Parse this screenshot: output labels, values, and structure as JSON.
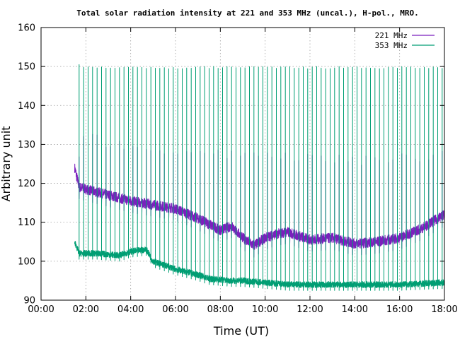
{
  "chart_data": {
    "type": "line",
    "title": "Total solar radiation intensity at 221 and 353 MHz (uncal.), H-pol., MRO.",
    "xlabel": "Time (UT)",
    "ylabel": "Arbitrary unit",
    "xlim": [
      0,
      18
    ],
    "ylim": [
      90,
      160
    ],
    "x_ticks": [
      "00:00",
      "02:00",
      "04:00",
      "06:00",
      "08:00",
      "10:00",
      "12:00",
      "14:00",
      "16:00",
      "18:00"
    ],
    "y_ticks": [
      "90",
      "100",
      "110",
      "120",
      "130",
      "140",
      "150",
      "160"
    ],
    "grid": true,
    "legend": "top-right",
    "series": [
      {
        "name": "221 MHz",
        "color": "#7b1fbd",
        "baseline": [
          [
            1.5,
            124
          ],
          [
            1.7,
            119
          ],
          [
            2.0,
            118.5
          ],
          [
            3.0,
            117
          ],
          [
            4.0,
            115.5
          ],
          [
            5.0,
            114.5
          ],
          [
            6.0,
            113.5
          ],
          [
            7.0,
            111
          ],
          [
            8.0,
            108
          ],
          [
            8.5,
            109
          ],
          [
            9.0,
            106
          ],
          [
            9.5,
            104
          ],
          [
            10.0,
            106
          ],
          [
            10.5,
            107
          ],
          [
            11.0,
            107.5
          ],
          [
            11.5,
            106.5
          ],
          [
            12.0,
            105.5
          ],
          [
            13.0,
            106
          ],
          [
            14.0,
            104.5
          ],
          [
            15.0,
            105
          ],
          [
            16.0,
            106
          ],
          [
            17.0,
            108.5
          ],
          [
            18.0,
            112
          ]
        ],
        "spikes": [
          [
            1.7,
            129
          ],
          [
            2.0,
            134
          ],
          [
            3.0,
            131
          ],
          [
            4.0,
            131
          ],
          [
            5.0,
            130
          ],
          [
            6.0,
            130
          ],
          [
            8.0,
            129
          ],
          [
            10.0,
            128
          ],
          [
            12.0,
            128
          ],
          [
            14.0,
            127
          ],
          [
            16.0,
            128
          ],
          [
            17.5,
            128
          ],
          [
            18.0,
            130
          ]
        ]
      },
      {
        "name": "353 MHz",
        "color": "#009e73",
        "baseline": [
          [
            1.5,
            105
          ],
          [
            1.7,
            102
          ],
          [
            2.5,
            102
          ],
          [
            3.5,
            101.5
          ],
          [
            4.0,
            102.5
          ],
          [
            4.7,
            103
          ],
          [
            5.0,
            100
          ],
          [
            6.0,
            98
          ],
          [
            7.0,
            96.5
          ],
          [
            7.5,
            95.5
          ],
          [
            8.5,
            95
          ],
          [
            9.0,
            95
          ],
          [
            10.0,
            94.5
          ],
          [
            11.0,
            94
          ],
          [
            12.0,
            94
          ],
          [
            14.0,
            94
          ],
          [
            16.0,
            94
          ],
          [
            18.0,
            94.5
          ]
        ],
        "spikes": [
          [
            1.7,
            151
          ],
          [
            2.0,
            150
          ],
          [
            4.0,
            150
          ],
          [
            6.0,
            150
          ],
          [
            8.0,
            150
          ],
          [
            10.0,
            150
          ],
          [
            12.0,
            150
          ],
          [
            14.0,
            150
          ],
          [
            16.0,
            150
          ],
          [
            18.0,
            150
          ]
        ]
      }
    ]
  }
}
